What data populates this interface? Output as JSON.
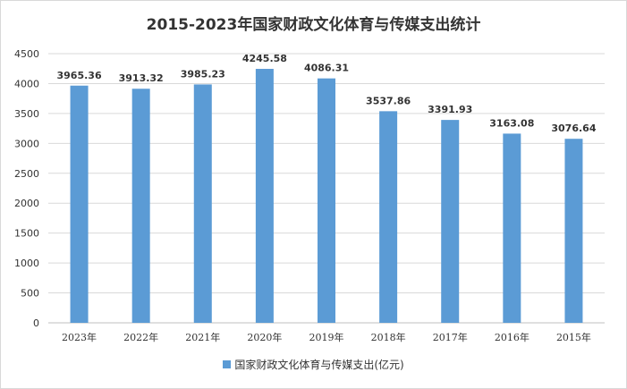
{
  "chart_data": {
    "type": "bar",
    "title": "2015-2023年国家财政文化体育与传媒支出统计",
    "categories": [
      "2023年",
      "2022年",
      "2021年",
      "2020年",
      "2019年",
      "2018年",
      "2017年",
      "2016年",
      "2015年"
    ],
    "series": [
      {
        "name": "国家财政文化体育与传媒支出(亿元)",
        "values": [
          3965.36,
          3913.32,
          3985.23,
          4245.58,
          4086.31,
          3537.86,
          3391.93,
          3163.08,
          3076.64
        ],
        "color": "#5b9bd5"
      }
    ],
    "data_labels": [
      "3965.36",
      "3913.32",
      "3985.23",
      "4245.58",
      "4086.31",
      "3537.86",
      "3391.93",
      "3163.08",
      "3076.64"
    ],
    "yticks": [
      "0",
      "500",
      "1000",
      "1500",
      "2000",
      "2500",
      "3000",
      "3500",
      "4000",
      "4500"
    ],
    "ylim": [
      0,
      4500
    ],
    "grid": true,
    "legend_position": "bottom",
    "grid_color": "#d9d9d9",
    "axis_color": "#bfbfbf"
  }
}
